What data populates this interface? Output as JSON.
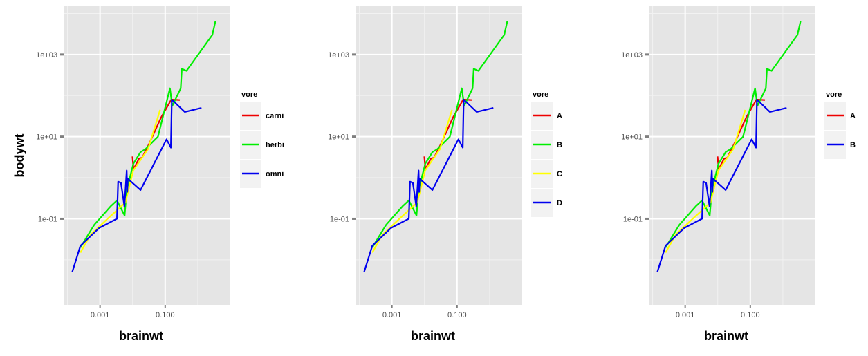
{
  "colors": {
    "panel_bg": "#E5E5E5",
    "grid_major": "#FFFFFF",
    "grid_minor": "#F2F2F2",
    "legend_key_bg": "#F2F2F2",
    "tick_text": "#4D4D4D",
    "red": "#EE0000",
    "green": "#00EE00",
    "yellow": "#FFFF00",
    "blue": "#0000EE"
  },
  "chart_data": [
    {
      "type": "line",
      "xlabel": "brainwt",
      "ylabel": "bodywt",
      "x_scale": "log10",
      "y_scale": "log10",
      "xlim": [
        8e-05,
        10
      ],
      "ylim": [
        0.0008,
        15000
      ],
      "x_ticks": [
        {
          "value": 0.001,
          "label": "0.001"
        },
        {
          "value": 0.1,
          "label": "0.100"
        }
      ],
      "y_ticks": [
        {
          "value": 0.1,
          "label": "1e-01"
        },
        {
          "value": 10,
          "label": "1e+01"
        },
        {
          "value": 1000,
          "label": "1e+03"
        }
      ],
      "grid": true,
      "legend": {
        "title": "vore",
        "position": "right"
      },
      "series": [
        {
          "name": "carni",
          "color": "#EE0000",
          "points": [
            [
              0.0099,
              3.3
            ],
            [
              0.0107,
              1.6
            ],
            [
              0.0156,
              2.9
            ],
            [
              0.0198,
              3.1
            ],
            [
              0.0325,
              6.8
            ],
            [
              0.0745,
              29.0
            ],
            [
              0.154,
              80.0
            ],
            [
              0.281,
              78.0
            ]
          ]
        },
        {
          "name": "herbi",
          "color": "#00EE00",
          "points": [
            [
              0.00025,
              0.02
            ],
            [
              0.00066,
              0.071
            ],
            [
              0.0021,
              0.2
            ],
            [
              0.0033,
              0.28
            ],
            [
              0.0057,
              0.12
            ],
            [
              0.0066,
              0.5
            ],
            [
              0.0106,
              2.2
            ],
            [
              0.0175,
              4.2
            ],
            [
              0.025,
              5.0
            ],
            [
              0.06,
              10.0
            ],
            [
              0.14,
              150.0
            ],
            [
              0.165,
              56.0
            ],
            [
              0.3,
              150.0
            ],
            [
              0.325,
              450.0
            ],
            [
              0.45,
              400.0
            ],
            [
              2.8,
              3000.0
            ],
            [
              3.5,
              6500.0
            ]
          ]
        },
        {
          "name": "",
          "color": "#FFFF00",
          "points": [
            [
              0.00025,
              0.015
            ],
            [
              0.0005,
              0.04
            ],
            [
              0.0017,
              0.1
            ],
            [
              0.003,
              0.15
            ],
            [
              0.006,
              0.25
            ],
            [
              0.0105,
              1.5
            ],
            [
              0.03,
              5.0
            ],
            [
              0.07,
              45.0
            ]
          ]
        },
        {
          "name": "omni",
          "color": "#0000EE",
          "points": [
            [
              0.00014,
              0.005
            ],
            [
              0.00025,
              0.022
            ],
            [
              0.00095,
              0.06
            ],
            [
              0.0033,
              0.1
            ],
            [
              0.0036,
              0.8
            ],
            [
              0.0044,
              0.75
            ],
            [
              0.0056,
              0.2
            ],
            [
              0.0066,
              1.5
            ],
            [
              0.0069,
              0.45
            ],
            [
              0.0071,
              0.95
            ],
            [
              0.0175,
              0.5
            ],
            [
              0.11,
              8.6
            ],
            [
              0.15,
              5.4
            ],
            [
              0.16,
              80.0
            ],
            [
              0.4,
              40.0
            ],
            [
              1.3,
              50.0
            ]
          ]
        }
      ]
    },
    {
      "type": "line",
      "xlabel": "brainwt",
      "ylabel": "",
      "x_scale": "log10",
      "y_scale": "log10",
      "xlim": [
        8e-05,
        10
      ],
      "ylim": [
        0.0008,
        15000
      ],
      "x_ticks": [
        {
          "value": 0.001,
          "label": "0.001"
        },
        {
          "value": 0.1,
          "label": "0.100"
        }
      ],
      "y_ticks": [
        {
          "value": 0.1,
          "label": "1e-01"
        },
        {
          "value": 10,
          "label": "1e+01"
        },
        {
          "value": 1000,
          "label": "1e+03"
        }
      ],
      "grid": true,
      "legend": {
        "title": "vore",
        "position": "right"
      },
      "series": [
        {
          "name": "A",
          "color": "#EE0000",
          "points": [
            [
              0.0099,
              3.3
            ],
            [
              0.0107,
              1.6
            ],
            [
              0.0156,
              2.9
            ],
            [
              0.0198,
              3.1
            ],
            [
              0.0325,
              6.8
            ],
            [
              0.0745,
              29.0
            ],
            [
              0.154,
              80.0
            ],
            [
              0.281,
              78.0
            ]
          ]
        },
        {
          "name": "B",
          "color": "#00EE00",
          "points": [
            [
              0.00025,
              0.02
            ],
            [
              0.00066,
              0.071
            ],
            [
              0.0021,
              0.2
            ],
            [
              0.0033,
              0.28
            ],
            [
              0.0057,
              0.12
            ],
            [
              0.0066,
              0.5
            ],
            [
              0.0106,
              2.2
            ],
            [
              0.0175,
              4.2
            ],
            [
              0.025,
              5.0
            ],
            [
              0.06,
              10.0
            ],
            [
              0.14,
              150.0
            ],
            [
              0.165,
              56.0
            ],
            [
              0.3,
              150.0
            ],
            [
              0.325,
              450.0
            ],
            [
              0.45,
              400.0
            ],
            [
              2.8,
              3000.0
            ],
            [
              3.5,
              6500.0
            ]
          ]
        },
        {
          "name": "C",
          "color": "#FFFF00",
          "points": [
            [
              0.00025,
              0.015
            ],
            [
              0.0005,
              0.04
            ],
            [
              0.0017,
              0.1
            ],
            [
              0.003,
              0.15
            ],
            [
              0.006,
              0.25
            ],
            [
              0.0105,
              1.5
            ],
            [
              0.03,
              5.0
            ],
            [
              0.07,
              45.0
            ]
          ]
        },
        {
          "name": "D",
          "color": "#0000EE",
          "points": [
            [
              0.00014,
              0.005
            ],
            [
              0.00025,
              0.022
            ],
            [
              0.00095,
              0.06
            ],
            [
              0.0033,
              0.1
            ],
            [
              0.0036,
              0.8
            ],
            [
              0.0044,
              0.75
            ],
            [
              0.0056,
              0.2
            ],
            [
              0.0066,
              1.5
            ],
            [
              0.0069,
              0.45
            ],
            [
              0.0071,
              0.95
            ],
            [
              0.0175,
              0.5
            ],
            [
              0.11,
              8.6
            ],
            [
              0.15,
              5.4
            ],
            [
              0.16,
              80.0
            ],
            [
              0.4,
              40.0
            ],
            [
              1.3,
              50.0
            ]
          ]
        }
      ]
    },
    {
      "type": "line",
      "xlabel": "brainwt",
      "ylabel": "",
      "x_scale": "log10",
      "y_scale": "log10",
      "xlim": [
        8e-05,
        10
      ],
      "ylim": [
        0.0008,
        15000
      ],
      "x_ticks": [
        {
          "value": 0.001,
          "label": "0.001"
        },
        {
          "value": 0.1,
          "label": "0.100"
        }
      ],
      "y_ticks": [
        {
          "value": 0.1,
          "label": "1e-01"
        },
        {
          "value": 10,
          "label": "1e+01"
        },
        {
          "value": 1000,
          "label": "1e+03"
        }
      ],
      "grid": true,
      "legend": {
        "title": "vore",
        "position": "right"
      },
      "series": [
        {
          "name": "A",
          "color": "#EE0000",
          "points": [
            [
              0.0099,
              3.3
            ],
            [
              0.0107,
              1.6
            ],
            [
              0.0156,
              2.9
            ],
            [
              0.0198,
              3.1
            ],
            [
              0.0325,
              6.8
            ],
            [
              0.0745,
              29.0
            ],
            [
              0.154,
              80.0
            ],
            [
              0.281,
              78.0
            ]
          ]
        },
        {
          "name": "",
          "color": "#00EE00",
          "points": [
            [
              0.00025,
              0.02
            ],
            [
              0.00066,
              0.071
            ],
            [
              0.0021,
              0.2
            ],
            [
              0.0033,
              0.28
            ],
            [
              0.0057,
              0.12
            ],
            [
              0.0066,
              0.5
            ],
            [
              0.0106,
              2.2
            ],
            [
              0.0175,
              4.2
            ],
            [
              0.025,
              5.0
            ],
            [
              0.06,
              10.0
            ],
            [
              0.14,
              150.0
            ],
            [
              0.165,
              56.0
            ],
            [
              0.3,
              150.0
            ],
            [
              0.325,
              450.0
            ],
            [
              0.45,
              400.0
            ],
            [
              2.8,
              3000.0
            ],
            [
              3.5,
              6500.0
            ]
          ]
        },
        {
          "name": "",
          "color": "#FFFF00",
          "points": [
            [
              0.00025,
              0.015
            ],
            [
              0.0005,
              0.04
            ],
            [
              0.0017,
              0.1
            ],
            [
              0.003,
              0.15
            ],
            [
              0.006,
              0.25
            ],
            [
              0.0105,
              1.5
            ],
            [
              0.03,
              5.0
            ],
            [
              0.07,
              45.0
            ]
          ]
        },
        {
          "name": "B",
          "color": "#0000EE",
          "points": [
            [
              0.00014,
              0.005
            ],
            [
              0.00025,
              0.022
            ],
            [
              0.00095,
              0.06
            ],
            [
              0.0033,
              0.1
            ],
            [
              0.0036,
              0.8
            ],
            [
              0.0044,
              0.75
            ],
            [
              0.0056,
              0.2
            ],
            [
              0.0066,
              1.5
            ],
            [
              0.0069,
              0.45
            ],
            [
              0.0071,
              0.95
            ],
            [
              0.0175,
              0.5
            ],
            [
              0.11,
              8.6
            ],
            [
              0.15,
              5.4
            ],
            [
              0.16,
              80.0
            ],
            [
              0.4,
              40.0
            ],
            [
              1.3,
              50.0
            ]
          ]
        }
      ]
    }
  ]
}
